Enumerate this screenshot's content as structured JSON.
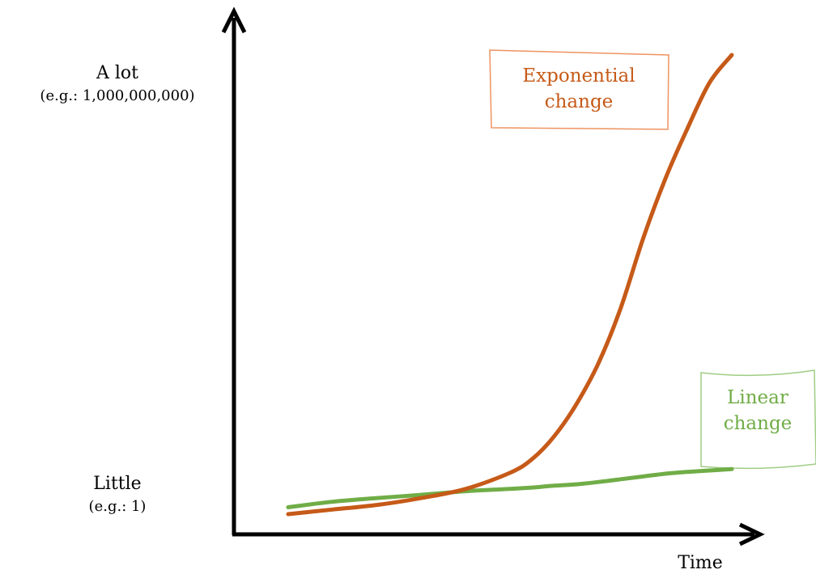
{
  "chart_data": {
    "type": "line",
    "title": "",
    "xlabel": "Time",
    "y_axis": {
      "high_label": "A lot",
      "high_example": "(e.g.: 1,000,000,000)",
      "low_label": "Little",
      "low_example": "(e.g.: 1)"
    },
    "x": [
      0,
      0.1,
      0.2,
      0.3,
      0.4,
      0.5,
      0.55,
      0.6,
      0.65,
      0.7,
      0.75,
      0.8,
      0.85,
      0.9,
      0.95,
      1.0
    ],
    "series": [
      {
        "name": "Exponential change",
        "color": "#c65a18",
        "values": [
          0,
          0.01,
          0.02,
          0.035,
          0.055,
          0.09,
          0.12,
          0.17,
          0.24,
          0.33,
          0.45,
          0.6,
          0.73,
          0.84,
          0.94,
          1.0
        ]
      },
      {
        "name": "Linear change",
        "color": "#70ad47",
        "values": [
          0.015,
          0.027,
          0.035,
          0.042,
          0.05,
          0.055,
          0.058,
          0.062,
          0.065,
          0.07,
          0.076,
          0.082,
          0.088,
          0.092,
          0.095,
          0.098
        ]
      }
    ]
  }
}
